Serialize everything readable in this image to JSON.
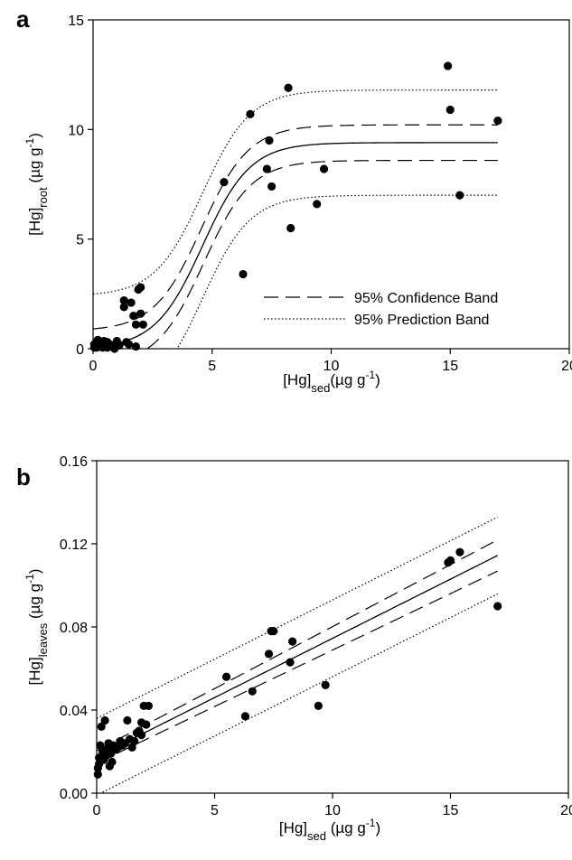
{
  "chart_data": [
    {
      "type": "scatter",
      "panel_label": "a",
      "xlabel": {
        "main": "[Hg]",
        "sub": "sed",
        "unit": "(µg g",
        "sup": "-1",
        "close": ")"
      },
      "ylabel": {
        "main": "[Hg]",
        "sub": "root",
        "unit": " (µg g",
        "sup": "-1",
        "close": ")"
      },
      "xlim": [
        0,
        20
      ],
      "ylim": [
        0,
        15
      ],
      "xticks": [
        "0",
        "5",
        "10",
        "15",
        "20"
      ],
      "yticks": [
        "0",
        "5",
        "10",
        "15"
      ],
      "legend": {
        "placement": "lower-right",
        "entries": [
          {
            "label": "95% Confidence Band",
            "style": "dashed"
          },
          {
            "label": "95% Prediction Band",
            "style": "dotted"
          }
        ]
      },
      "fit": {
        "model": "sigmoid",
        "a": 9.4,
        "x0": 4.6,
        "b": 1.0,
        "x_end": 17
      },
      "bands": {
        "confidence": 0.9,
        "prediction": 2.4
      },
      "points": [
        [
          0.05,
          0.05
        ],
        [
          0.1,
          0.15
        ],
        [
          0.15,
          0.3
        ],
        [
          0.2,
          0.4
        ],
        [
          0.25,
          0.2
        ],
        [
          0.3,
          0.1
        ],
        [
          0.35,
          0.25
        ],
        [
          0.4,
          0.05
        ],
        [
          0.45,
          0.35
        ],
        [
          0.5,
          0.15
        ],
        [
          0.55,
          0.3
        ],
        [
          0.6,
          0.05
        ],
        [
          0.7,
          0.2
        ],
        [
          0.8,
          0.1
        ],
        [
          0.9,
          0.0
        ],
        [
          1.0,
          0.35
        ],
        [
          1.1,
          0.15
        ],
        [
          1.3,
          2.2
        ],
        [
          1.3,
          1.9
        ],
        [
          1.4,
          0.3
        ],
        [
          1.5,
          0.2
        ],
        [
          1.6,
          2.1
        ],
        [
          1.7,
          1.5
        ],
        [
          1.8,
          1.1
        ],
        [
          1.8,
          0.1
        ],
        [
          1.9,
          2.7
        ],
        [
          2.0,
          2.8
        ],
        [
          2.0,
          1.6
        ],
        [
          2.1,
          1.1
        ],
        [
          0.05,
          0.2
        ],
        [
          0.15,
          0.05
        ],
        [
          0.6,
          0.3
        ],
        [
          5.5,
          7.6
        ],
        [
          6.3,
          3.4
        ],
        [
          6.6,
          10.7
        ],
        [
          7.3,
          8.2
        ],
        [
          7.4,
          9.5
        ],
        [
          7.5,
          7.4
        ],
        [
          8.2,
          11.9
        ],
        [
          8.3,
          5.5
        ],
        [
          9.4,
          6.6
        ],
        [
          9.7,
          8.2
        ],
        [
          14.9,
          12.9
        ],
        [
          15.0,
          10.9
        ],
        [
          15.4,
          7.0
        ],
        [
          17.0,
          10.4
        ]
      ]
    },
    {
      "type": "scatter",
      "panel_label": "b",
      "xlabel": {
        "main": "[Hg]",
        "sub": "sed",
        "unit": " (µg g",
        "sup": "-1",
        "close": ")"
      },
      "ylabel": {
        "main": "[Hg]",
        "sub": "leaves",
        "unit": " (µg g",
        "sup": "-1",
        "close": ")"
      },
      "xlim": [
        0,
        20
      ],
      "ylim": [
        0,
        0.16
      ],
      "xticks": [
        "0",
        "5",
        "10",
        "15",
        "20"
      ],
      "yticks": [
        "0.00",
        "0.04",
        "0.08",
        "0.12",
        "0.16"
      ],
      "fit": {
        "model": "linear",
        "intercept": 0.0175,
        "slope": 0.0057,
        "x_end": 17
      },
      "bands": {
        "confidence_at_0": 0.003,
        "confidence_at_end": 0.0075,
        "prediction": 0.0185
      },
      "points": [
        [
          0.05,
          0.009
        ],
        [
          0.05,
          0.012
        ],
        [
          0.1,
          0.014
        ],
        [
          0.1,
          0.017
        ],
        [
          0.15,
          0.023
        ],
        [
          0.2,
          0.032
        ],
        [
          0.25,
          0.02
        ],
        [
          0.3,
          0.016
        ],
        [
          0.35,
          0.035
        ],
        [
          0.4,
          0.018
        ],
        [
          0.45,
          0.021
        ],
        [
          0.5,
          0.024
        ],
        [
          0.55,
          0.013
        ],
        [
          0.6,
          0.019
        ],
        [
          0.7,
          0.023
        ],
        [
          0.8,
          0.021
        ],
        [
          0.9,
          0.022
        ],
        [
          1.0,
          0.025
        ],
        [
          1.1,
          0.023
        ],
        [
          1.2,
          0.024
        ],
        [
          1.3,
          0.035
        ],
        [
          1.4,
          0.026
        ],
        [
          1.5,
          0.022
        ],
        [
          1.6,
          0.025
        ],
        [
          1.7,
          0.029
        ],
        [
          1.8,
          0.03
        ],
        [
          1.9,
          0.034
        ],
        [
          1.9,
          0.028
        ],
        [
          2.0,
          0.042
        ],
        [
          2.1,
          0.033
        ],
        [
          2.2,
          0.042
        ],
        [
          0.65,
          0.015
        ],
        [
          5.5,
          0.056
        ],
        [
          6.3,
          0.037
        ],
        [
          6.6,
          0.049
        ],
        [
          7.3,
          0.067
        ],
        [
          7.4,
          0.078
        ],
        [
          7.5,
          0.078
        ],
        [
          8.2,
          0.063
        ],
        [
          8.3,
          0.073
        ],
        [
          9.4,
          0.042
        ],
        [
          9.7,
          0.052
        ],
        [
          14.9,
          0.111
        ],
        [
          15.0,
          0.112
        ],
        [
          15.4,
          0.116
        ],
        [
          17.0,
          0.09
        ]
      ]
    }
  ]
}
